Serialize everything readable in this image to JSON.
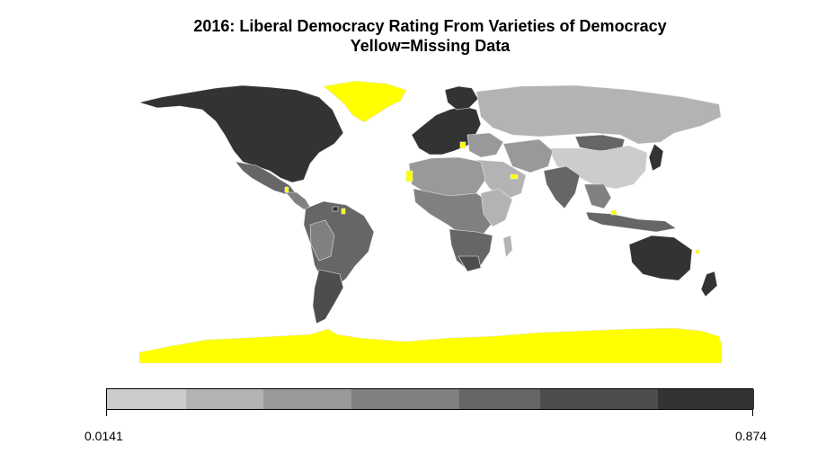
{
  "title": {
    "line1": "2016: Liberal Democracy Rating From Varieties of Democracy",
    "line2": "Yellow=Missing Data"
  },
  "legend": {
    "min_label": "0.0141",
    "max_label": "0.874",
    "colors": [
      "#cccccc",
      "#b3b3b3",
      "#999999",
      "#808080",
      "#666666",
      "#4d4d4d",
      "#333333"
    ],
    "widths": [
      88,
      86,
      98,
      120,
      90,
      131,
      107
    ]
  },
  "colors": {
    "missing": "#ffff00",
    "ocean": "#ffffff",
    "border": "#e6e6e6"
  }
}
